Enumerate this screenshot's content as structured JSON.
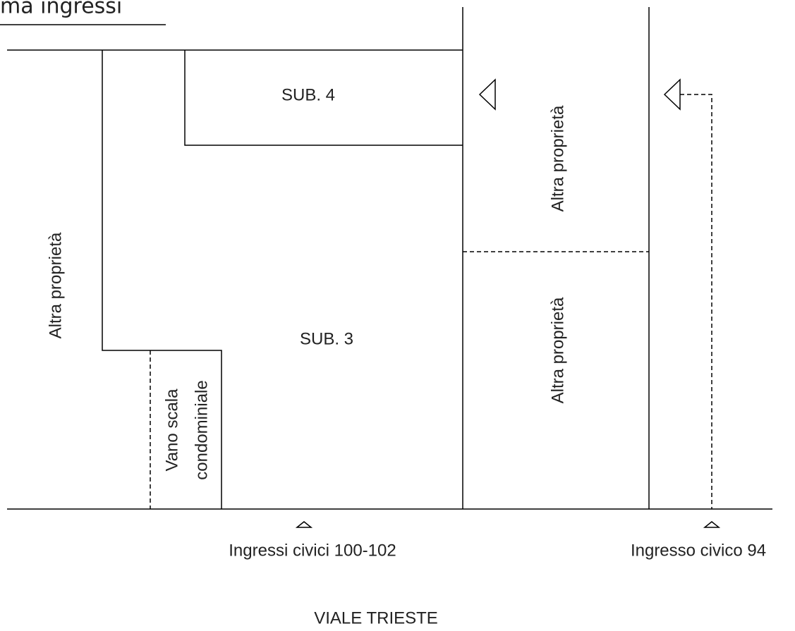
{
  "title": "ma ingressi",
  "rooms": {
    "sub4": "SUB. 4",
    "sub3": "SUB. 3"
  },
  "others": [
    "Altra proprietà",
    "Altra proprietà",
    "Altra proprietà"
  ],
  "stair": [
    "Vano scala",
    "condominiale"
  ],
  "entrances": [
    "Ingressi civici 100-102",
    "Ingresso civico 94"
  ],
  "street": "VIALE TRIESTE"
}
